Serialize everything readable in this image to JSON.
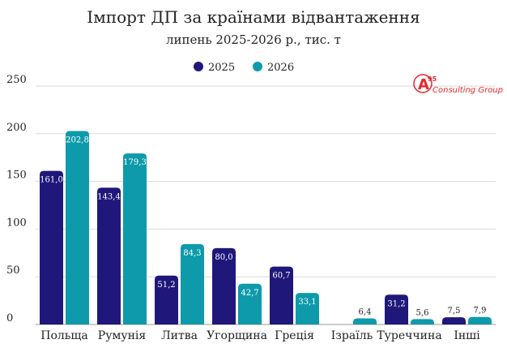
{
  "chart_data": {
    "type": "bar",
    "title": "Імпорт ДП за країнами відвантаження",
    "subtitle": "липень 2025-2026 р., тис. т",
    "categories": [
      "Польща",
      "Румунія",
      "Литва",
      "Угорщина",
      "Греція",
      "Ізраїль",
      "Туреччина",
      "Інші"
    ],
    "series": [
      {
        "name": "2025",
        "color": "#20177a",
        "values": [
          161.0,
          143.4,
          51.2,
          80.0,
          60.7,
          null,
          31.2,
          7.5
        ],
        "labels": [
          "161,0",
          "143,4",
          "51,2",
          "80,0",
          "60,7",
          "",
          "31,2",
          "7,5"
        ]
      },
      {
        "name": "2026",
        "color": "#0e9aaa",
        "values": [
          202.8,
          179.3,
          84.3,
          42.7,
          33.1,
          6.4,
          5.6,
          7.9
        ],
        "labels": [
          "202,8",
          "179,3",
          "84,3",
          "42,7",
          "33,1",
          "6,4",
          "5,6",
          "7,9"
        ]
      }
    ],
    "ylim": [
      0,
      250
    ],
    "yticks": [
      0,
      50,
      100,
      150,
      200,
      250
    ],
    "grid": true,
    "legend": "top"
  },
  "logo": {
    "mark": "A",
    "sup": "95",
    "text": "Consulting Group"
  }
}
